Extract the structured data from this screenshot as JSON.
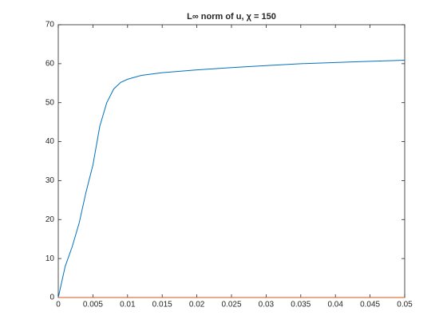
{
  "chart_data": {
    "type": "line",
    "title": "L∞ norm of u, χ = 150",
    "xlim": [
      0,
      0.05
    ],
    "xticks": [
      0,
      0.005,
      0.01,
      0.015,
      0.02,
      0.025,
      0.03,
      0.035,
      0.04,
      0.045,
      0.05
    ],
    "ylim": [
      0,
      70
    ],
    "yticks": [
      0,
      10,
      20,
      30,
      40,
      50,
      60,
      70
    ],
    "series": [
      {
        "color": "#0072bd",
        "x": [
          0,
          0.001,
          0.002,
          0.003,
          0.004,
          0.005,
          0.006,
          0.007,
          0.008,
          0.009,
          0.01,
          0.012,
          0.015,
          0.02,
          0.025,
          0.03,
          0.035,
          0.04,
          0.045,
          0.05
        ],
        "values": [
          0,
          8,
          13,
          19,
          27,
          34,
          44,
          50,
          53.5,
          55.2,
          56,
          57,
          57.7,
          58.4,
          59,
          59.5,
          60,
          60.3,
          60.6,
          60.9
        ]
      },
      {
        "color": "#d95319",
        "x": [
          0,
          0.05
        ],
        "values": [
          0,
          0
        ]
      }
    ]
  }
}
